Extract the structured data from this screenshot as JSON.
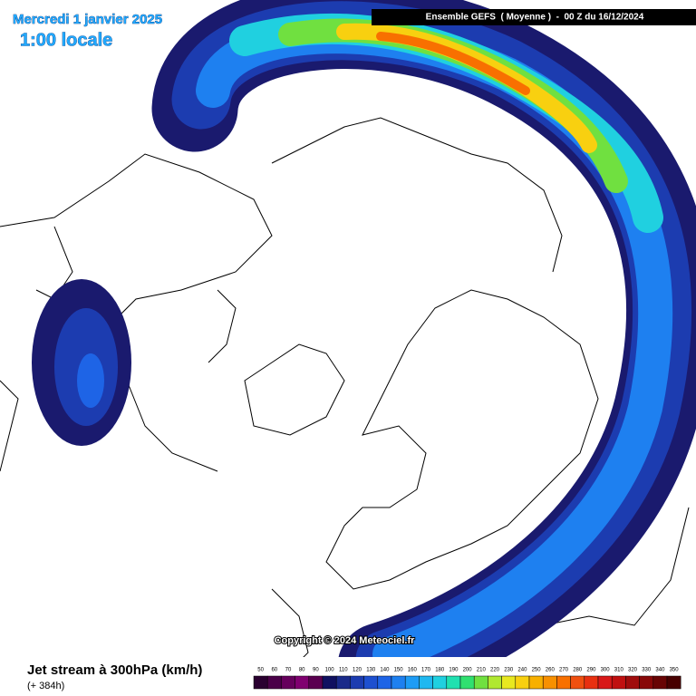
{
  "header": {
    "date": "Mercredi 1 janvier 2025",
    "time": "1:00 locale",
    "run": "Ensemble GEFS  ( Moyenne )  -  00 Z du 16/12/2024"
  },
  "copyright": "Copyright © 2024 Meteociel.fr",
  "footer": {
    "title": "Jet stream à 300hPa (km/h)",
    "lead": "(+ 384h)"
  },
  "legend": {
    "values": [
      50,
      60,
      70,
      80,
      90,
      100,
      110,
      120,
      130,
      140,
      150,
      160,
      170,
      180,
      190,
      200,
      210,
      220,
      230,
      240,
      250,
      260,
      270,
      280,
      290,
      300,
      310,
      320,
      330,
      340,
      350
    ],
    "colors": [
      "#2a0030",
      "#4a0048",
      "#66005c",
      "#800070",
      "#5a0050",
      "#101060",
      "#1a2a8a",
      "#1c3cb0",
      "#1e50d0",
      "#1e64e6",
      "#1e80f0",
      "#1e9cf5",
      "#20b8f0",
      "#20d0e0",
      "#20e0b0",
      "#30e070",
      "#70e040",
      "#b0e830",
      "#e8e820",
      "#f8d010",
      "#f8b000",
      "#f89000",
      "#f87000",
      "#f05010",
      "#e83010",
      "#d81818",
      "#c01010",
      "#a00c0c",
      "#880808",
      "#680404",
      "#480000"
    ]
  }
}
